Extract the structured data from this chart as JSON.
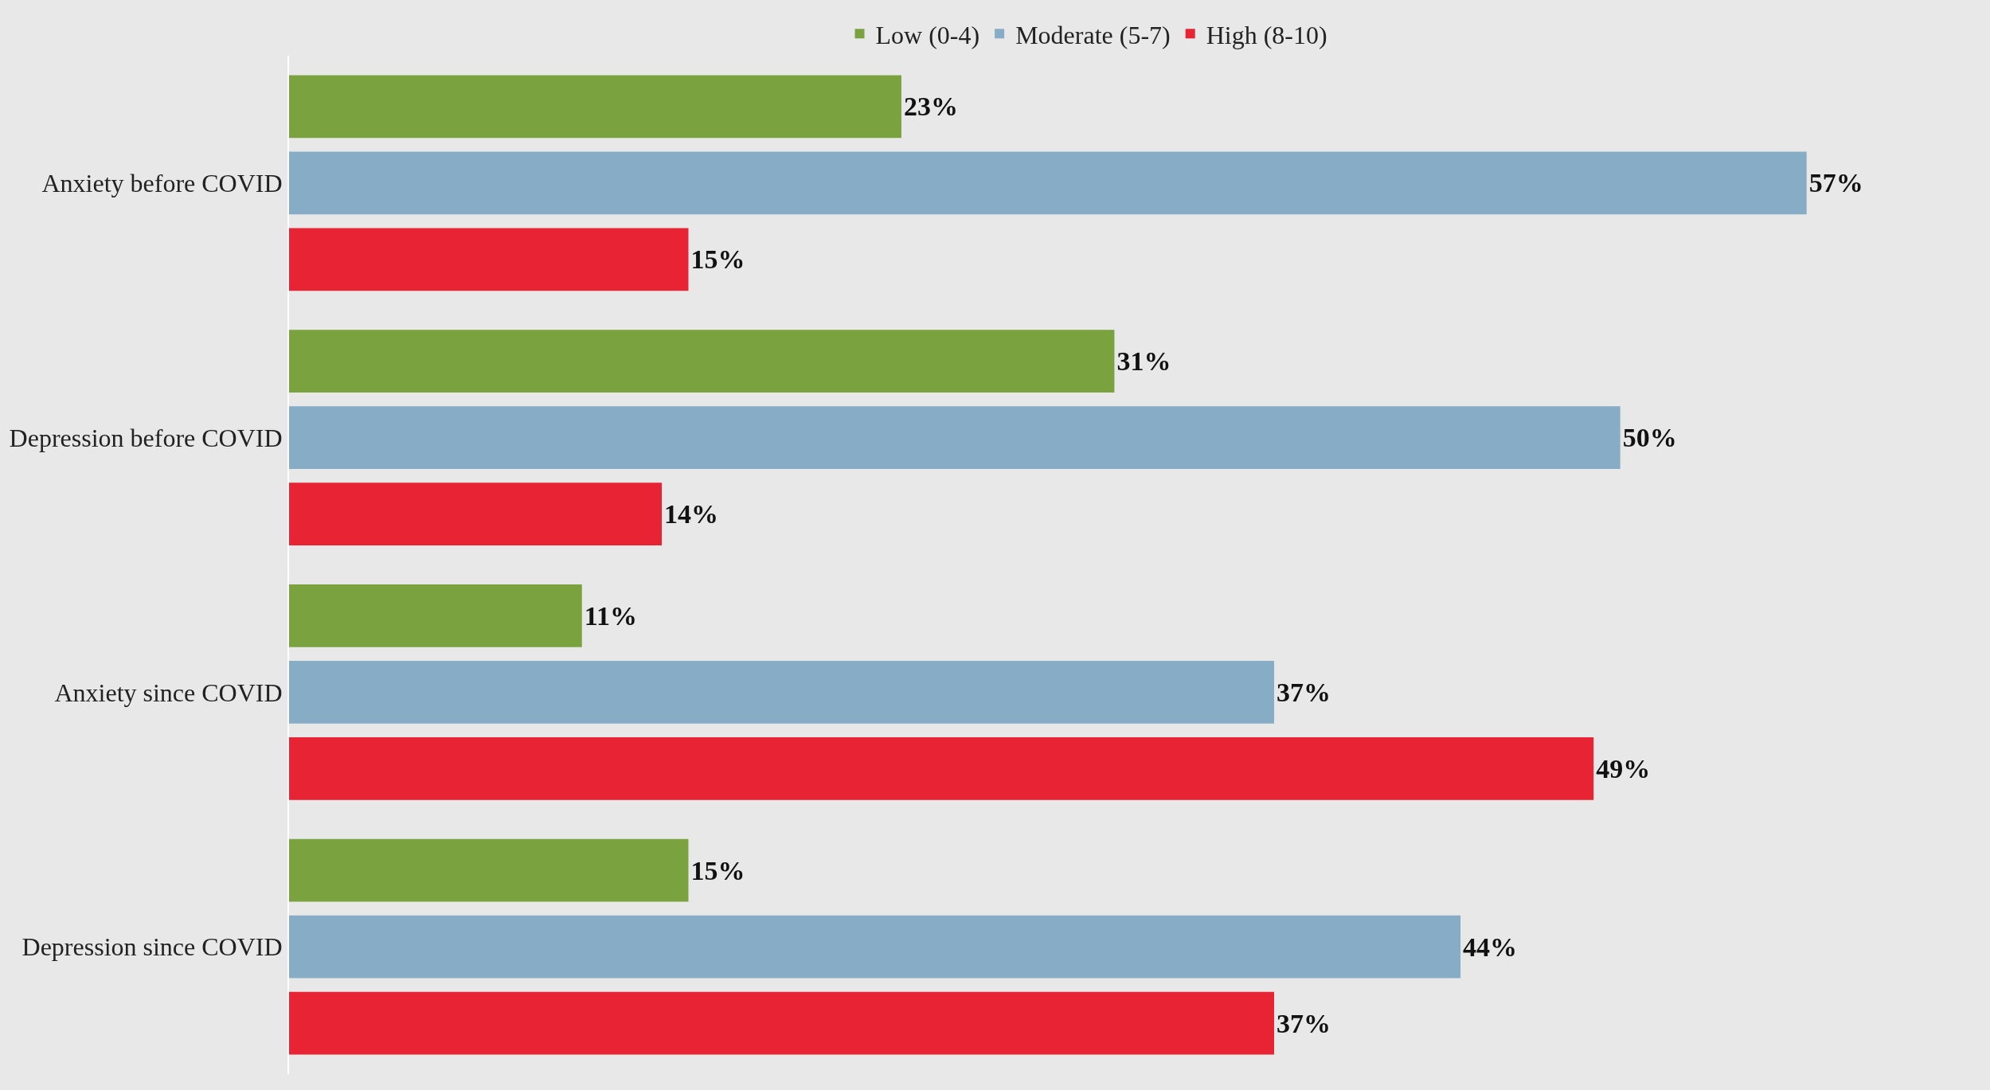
{
  "chart_data": {
    "type": "bar",
    "orientation": "horizontal",
    "categories": [
      "Anxiety before COVID",
      "Depression before COVID",
      "Anxiety since COVID",
      "Depression since COVID"
    ],
    "series": [
      {
        "name": "Low (0-4)",
        "color": "#7aa33f",
        "values": [
          23,
          31,
          11,
          15
        ],
        "value_labels": [
          "23%",
          "31%",
          "11%",
          "15%"
        ]
      },
      {
        "name": "Moderate (5-7)",
        "color": "#87adc6",
        "values": [
          57,
          50,
          37,
          44
        ],
        "value_labels": [
          "57%",
          "50%",
          "37%",
          "44%"
        ]
      },
      {
        "name": "High (8-10)",
        "color": "#e82334",
        "values": [
          15,
          14,
          49,
          37
        ],
        "value_labels": [
          "15%",
          "14%",
          "49%",
          "37%"
        ]
      }
    ],
    "legend": "top",
    "grid": false,
    "tick_labels": "y"
  }
}
